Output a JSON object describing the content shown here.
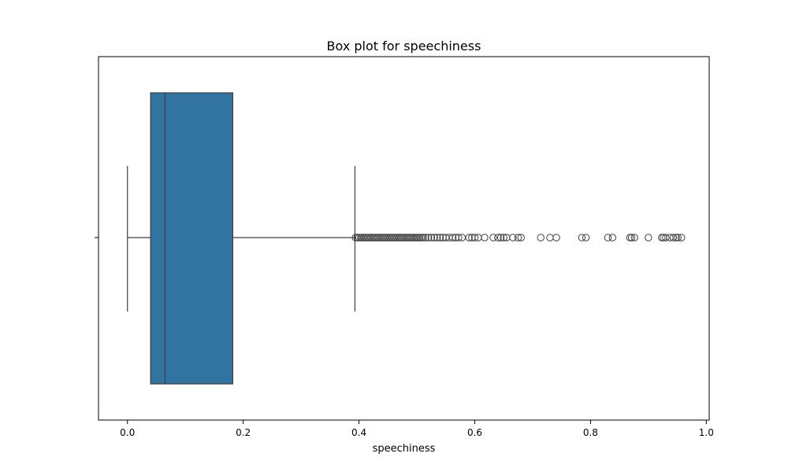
{
  "chart_data": {
    "type": "box",
    "title": "Box plot for speechiness",
    "xlabel": "speechiness",
    "ylabel": "",
    "orientation": "horizontal",
    "xlim": [
      -0.05,
      1.005
    ],
    "xticks": [
      0.0,
      0.2,
      0.4,
      0.6,
      0.8,
      1.0
    ],
    "xtick_labels": [
      "0.0",
      "0.2",
      "0.4",
      "0.6",
      "0.8",
      "1.0"
    ],
    "grid": false,
    "box": {
      "whisker_low": 0.0,
      "q1": 0.04,
      "median": 0.065,
      "q3": 0.182,
      "whisker_high": 0.393
    },
    "outliers": [
      0.394,
      0.397,
      0.4,
      0.403,
      0.406,
      0.409,
      0.412,
      0.415,
      0.418,
      0.421,
      0.424,
      0.427,
      0.43,
      0.433,
      0.436,
      0.439,
      0.442,
      0.445,
      0.448,
      0.451,
      0.454,
      0.457,
      0.46,
      0.463,
      0.466,
      0.469,
      0.472,
      0.475,
      0.478,
      0.481,
      0.484,
      0.487,
      0.49,
      0.493,
      0.496,
      0.499,
      0.502,
      0.505,
      0.508,
      0.511,
      0.515,
      0.52,
      0.525,
      0.53,
      0.535,
      0.54,
      0.545,
      0.55,
      0.556,
      0.562,
      0.567,
      0.572,
      0.578,
      0.59,
      0.595,
      0.6,
      0.606,
      0.617,
      0.632,
      0.64,
      0.645,
      0.65,
      0.655,
      0.666,
      0.675,
      0.68,
      0.714,
      0.73,
      0.741,
      0.785,
      0.792,
      0.83,
      0.838,
      0.868,
      0.871,
      0.876,
      0.9,
      0.923,
      0.926,
      0.93,
      0.937,
      0.943,
      0.948,
      0.951,
      0.957
    ],
    "colors": {
      "box_fill": "#3274a1",
      "line": "#3f3f3f",
      "frame": "#000000"
    }
  }
}
